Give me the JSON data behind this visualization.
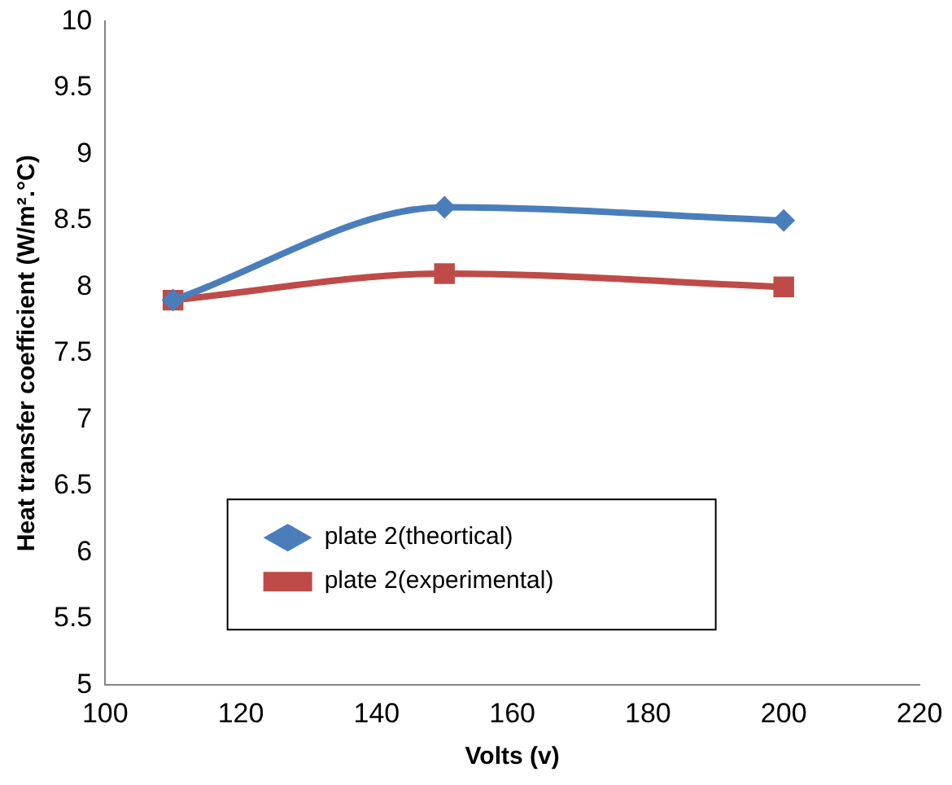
{
  "chart_data": {
    "type": "line",
    "xlabel": "Volts (v)",
    "ylabel": "Heat transfer coefficient (W/m².°C)",
    "x": [
      110,
      150,
      200
    ],
    "series": [
      {
        "name": "plate 2(theortical)",
        "color": "#4a7ebb",
        "marker": "diamond",
        "values": [
          7.9,
          8.6,
          8.5
        ]
      },
      {
        "name": "plate 2(experimental)",
        "color": "#be4b48",
        "marker": "square",
        "values": [
          7.9,
          8.1,
          8.0
        ]
      }
    ],
    "xlim": [
      100,
      220
    ],
    "xticks": [
      100,
      120,
      140,
      160,
      180,
      200,
      220
    ],
    "ylim": [
      5,
      10
    ],
    "yticks": [
      5,
      5.5,
      6,
      6.5,
      7,
      7.5,
      8,
      8.5,
      9,
      9.5,
      10
    ],
    "grid": false,
    "legend": "bottom"
  }
}
